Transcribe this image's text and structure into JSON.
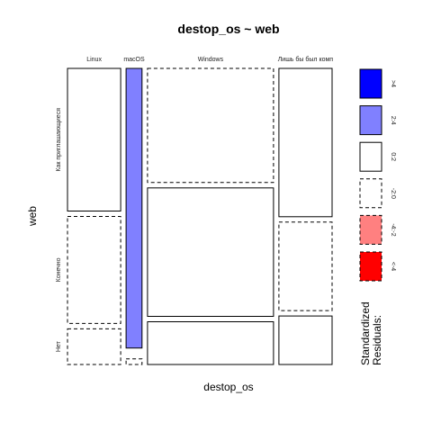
{
  "chart_data": {
    "type": "mosaic",
    "title": "destop_os ~ web",
    "xlabel": "destop_os",
    "ylabel": "web",
    "x_categories": [
      "Linux",
      "macOS",
      "Windows",
      "Лишь бы был комп"
    ],
    "y_categories": [
      "Как приглашающиеся",
      "Конечно",
      "Нет"
    ],
    "column_shares": [
      0.19,
      0.057,
      0.45,
      0.19
    ],
    "cells": [
      {
        "x": "Linux",
        "y": "Как приглашающиеся",
        "share": 0.5,
        "residual": "0:2"
      },
      {
        "x": "Linux",
        "y": "Конечно",
        "share": 0.375,
        "residual": "-2:0"
      },
      {
        "x": "Linux",
        "y": "Нет",
        "share": 0.125,
        "residual": "-2:0"
      },
      {
        "x": "macOS",
        "y": "Как приглашающиеся",
        "share": 0.98,
        "residual": "2:4"
      },
      {
        "x": "macOS",
        "y": "Конечно",
        "share": 0.0,
        "residual": "-2:0"
      },
      {
        "x": "macOS",
        "y": "Нет",
        "share": 0.02,
        "residual": "-2:0"
      },
      {
        "x": "Windows",
        "y": "Как приглашающиеся",
        "share": 0.4,
        "residual": "-2:0"
      },
      {
        "x": "Windows",
        "y": "Конечно",
        "share": 0.45,
        "residual": "0:2"
      },
      {
        "x": "Windows",
        "y": "Нет",
        "share": 0.15,
        "residual": "0:2"
      },
      {
        "x": "Лишь бы был комп",
        "y": "Как приглашающиеся",
        "share": 0.52,
        "residual": "0:2"
      },
      {
        "x": "Лишь бы был комп",
        "y": "Конечно",
        "share": 0.31,
        "residual": "-2:0"
      },
      {
        "x": "Лишь бы был комп",
        "y": "Нет",
        "share": 0.17,
        "residual": "0:2"
      }
    ],
    "legend": {
      "title_line1": "Standardized",
      "title_line2": "Residuals:",
      "placement": "right",
      "items": [
        {
          "label": ">4",
          "fill": "#0000ff",
          "dashed": false
        },
        {
          "label": "2:4",
          "fill": "#8080ff",
          "dashed": false
        },
        {
          "label": "0:2",
          "fill": "#ffffff",
          "dashed": false
        },
        {
          "label": "-2:0",
          "fill": "#ffffff",
          "dashed": true
        },
        {
          "label": "-4:-2",
          "fill": "#ff8080",
          "dashed": true
        },
        {
          "label": "<-4",
          "fill": "#ff0000",
          "dashed": true
        }
      ]
    }
  }
}
